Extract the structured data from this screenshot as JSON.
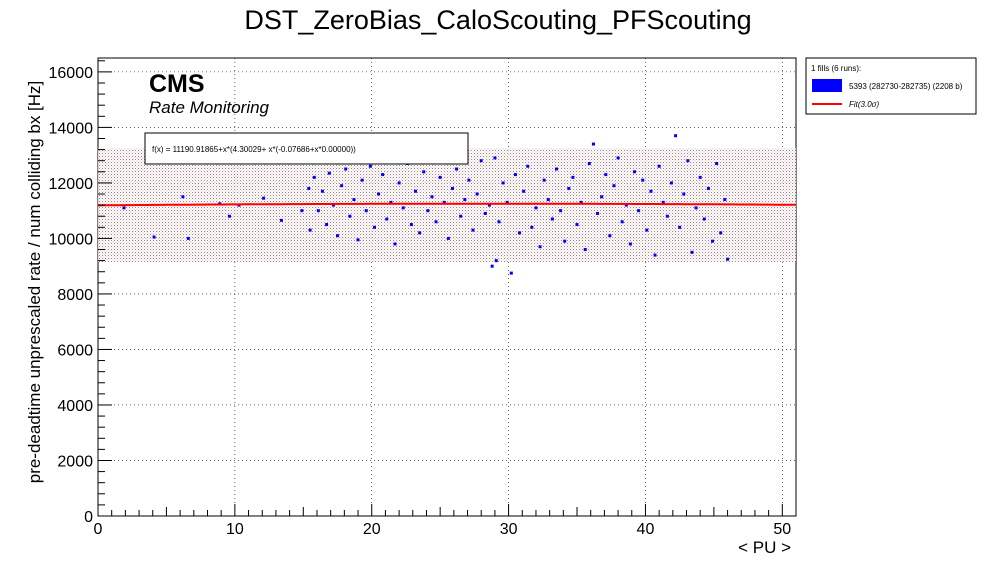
{
  "chart_data": {
    "type": "scatter",
    "title": "DST_ZeroBias_CaloScouting_PFScouting",
    "xlabel": "< PU >",
    "ylabel": "pre-deadtime unprescaled rate / num colliding bx [Hz]",
    "xlim": [
      0,
      51
    ],
    "ylim": [
      0,
      16500
    ],
    "x_ticks": [
      "0",
      "10",
      "20",
      "30",
      "40",
      "50"
    ],
    "y_ticks": [
      "0",
      "2000",
      "4000",
      "6000",
      "8000",
      "10000",
      "12000",
      "14000",
      "16000"
    ],
    "grid": true,
    "watermark": "CMS",
    "watermark_subtitle": "Rate Monitoring",
    "fit_label": "f(x) = 11190.91865+x*(4.30029+ x*(-0.07686+x*0.00000))",
    "fit": {
      "a": 11190.91865,
      "b": 4.30029,
      "c": -0.07686,
      "x_range": [
        0,
        51
      ]
    },
    "band": {
      "sigma": 3.0,
      "y_range": [
        9150,
        13250
      ]
    },
    "legend": {
      "header": "1 fills (6 runs):",
      "entries": [
        {
          "label": "5393 (282730-282735) (2208 b)",
          "color": "#0000ff"
        },
        {
          "label": "Fit(3.0σ)",
          "color": "#ff0000"
        }
      ]
    },
    "series": [
      {
        "name": "5393 (282730-282735) (2208 b)",
        "color": "#0000ff",
        "points": [
          [
            1.9,
            11100
          ],
          [
            4.1,
            10050
          ],
          [
            6.2,
            11500
          ],
          [
            6.6,
            10000
          ],
          [
            8.9,
            11250
          ],
          [
            9.6,
            10800
          ],
          [
            10.3,
            11200
          ],
          [
            12.1,
            11450
          ],
          [
            13.4,
            10650
          ],
          [
            14.9,
            11000
          ],
          [
            15.4,
            11800
          ],
          [
            15.5,
            10300
          ],
          [
            15.8,
            12200
          ],
          [
            16.1,
            11000
          ],
          [
            16.4,
            11700
          ],
          [
            16.7,
            10500
          ],
          [
            16.9,
            12350
          ],
          [
            17.2,
            11200
          ],
          [
            17.5,
            10100
          ],
          [
            17.8,
            11900
          ],
          [
            18.1,
            12500
          ],
          [
            18.4,
            10800
          ],
          [
            18.7,
            11400
          ],
          [
            19.0,
            9950
          ],
          [
            19.3,
            12100
          ],
          [
            19.6,
            11000
          ],
          [
            19.9,
            12600
          ],
          [
            20.2,
            10400
          ],
          [
            20.5,
            11600
          ],
          [
            20.8,
            12300
          ],
          [
            21.1,
            10700
          ],
          [
            21.4,
            11300
          ],
          [
            21.7,
            9800
          ],
          [
            22.0,
            12000
          ],
          [
            22.3,
            11100
          ],
          [
            22.6,
            12700
          ],
          [
            22.9,
            10500
          ],
          [
            23.2,
            11700
          ],
          [
            23.5,
            10200
          ],
          [
            23.8,
            12400
          ],
          [
            24.1,
            11000
          ],
          [
            24.4,
            11500
          ],
          [
            24.7,
            10600
          ],
          [
            25.0,
            12200
          ],
          [
            25.3,
            11300
          ],
          [
            25.6,
            10000
          ],
          [
            25.9,
            11800
          ],
          [
            26.2,
            12500
          ],
          [
            26.5,
            10800
          ],
          [
            26.8,
            11400
          ],
          [
            27.1,
            12100
          ],
          [
            27.4,
            10300
          ],
          [
            27.7,
            11600
          ],
          [
            28.0,
            12800
          ],
          [
            28.3,
            10900
          ],
          [
            28.6,
            11200
          ],
          [
            28.8,
            9000
          ],
          [
            29.0,
            12900
          ],
          [
            29.1,
            9200
          ],
          [
            29.3,
            10600
          ],
          [
            29.6,
            12000
          ],
          [
            29.9,
            11300
          ],
          [
            30.2,
            8750
          ],
          [
            30.5,
            12300
          ],
          [
            30.8,
            10200
          ],
          [
            31.1,
            11700
          ],
          [
            31.4,
            12600
          ],
          [
            31.7,
            10400
          ],
          [
            32.0,
            11100
          ],
          [
            32.3,
            9700
          ],
          [
            32.6,
            12100
          ],
          [
            32.9,
            11400
          ],
          [
            33.2,
            10700
          ],
          [
            33.5,
            12500
          ],
          [
            33.8,
            11000
          ],
          [
            34.1,
            9900
          ],
          [
            34.4,
            11800
          ],
          [
            34.7,
            12200
          ],
          [
            35.0,
            10500
          ],
          [
            35.3,
            11300
          ],
          [
            35.6,
            9600
          ],
          [
            35.9,
            12700
          ],
          [
            36.2,
            13400
          ],
          [
            36.5,
            10900
          ],
          [
            36.8,
            11500
          ],
          [
            37.1,
            12300
          ],
          [
            37.4,
            10100
          ],
          [
            37.7,
            11900
          ],
          [
            38.0,
            12900
          ],
          [
            38.3,
            10600
          ],
          [
            38.6,
            11200
          ],
          [
            38.9,
            9800
          ],
          [
            39.2,
            12400
          ],
          [
            39.5,
            11000
          ],
          [
            39.8,
            12100
          ],
          [
            40.1,
            10300
          ],
          [
            40.4,
            11700
          ],
          [
            40.7,
            9400
          ],
          [
            41.0,
            12600
          ],
          [
            41.3,
            11300
          ],
          [
            41.6,
            10800
          ],
          [
            41.9,
            12000
          ],
          [
            42.2,
            13700
          ],
          [
            42.5,
            10400
          ],
          [
            42.8,
            11600
          ],
          [
            43.1,
            12800
          ],
          [
            43.4,
            9500
          ],
          [
            43.7,
            11100
          ],
          [
            44.0,
            12200
          ],
          [
            44.3,
            10700
          ],
          [
            44.6,
            11800
          ],
          [
            44.9,
            9900
          ],
          [
            45.2,
            12700
          ],
          [
            45.5,
            10200
          ],
          [
            45.8,
            11400
          ],
          [
            46.0,
            9250
          ]
        ]
      }
    ]
  }
}
